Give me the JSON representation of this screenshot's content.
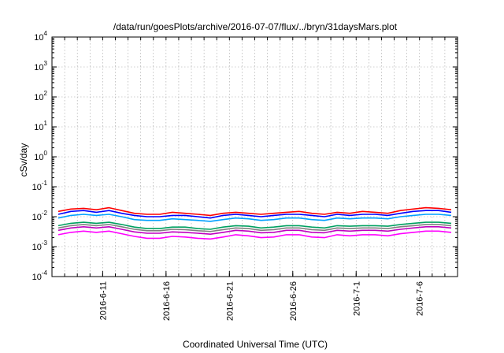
{
  "chart_data": {
    "type": "line",
    "title": "/data/run/goesPlots/archive/2016-07-07/flux/../bryn/31daysMars.plot",
    "xlabel": "Coordinated Universal Time (UTC)",
    "ylabel": "cSv/day",
    "yscale": "log",
    "ylim": [
      0.0001,
      10000
    ],
    "xlim": [
      "2016-06-07T00:00",
      "2016-07-09T00:00"
    ],
    "grid": true,
    "legend": "none",
    "y_ticks": [
      {
        "base": "10",
        "exp": "-4"
      },
      {
        "base": "10",
        "exp": "-3"
      },
      {
        "base": "10",
        "exp": "-2"
      },
      {
        "base": "10",
        "exp": "-1"
      },
      {
        "base": "10",
        "exp": "0"
      },
      {
        "base": "10",
        "exp": "1"
      },
      {
        "base": "10",
        "exp": "2"
      },
      {
        "base": "10",
        "exp": "3"
      },
      {
        "base": "10",
        "exp": "4"
      }
    ],
    "x_ticks": [
      "2016-6-11",
      "2016-6-16",
      "2016-6-21",
      "2016-6-26",
      "2016-7-1",
      "2016-7-6"
    ],
    "x": [
      "2016-06-07",
      "2016-06-08",
      "2016-06-09",
      "2016-06-10",
      "2016-06-11",
      "2016-06-12",
      "2016-06-13",
      "2016-06-14",
      "2016-06-15",
      "2016-06-16",
      "2016-06-17",
      "2016-06-18",
      "2016-06-19",
      "2016-06-20",
      "2016-06-21",
      "2016-06-22",
      "2016-06-23",
      "2016-06-24",
      "2016-06-25",
      "2016-06-26",
      "2016-06-27",
      "2016-06-28",
      "2016-06-29",
      "2016-06-30",
      "2016-07-01",
      "2016-07-02",
      "2016-07-03",
      "2016-07-04",
      "2016-07-05",
      "2016-07-06",
      "2016-07-07",
      "2016-07-08"
    ],
    "series": [
      {
        "color": "#ff0000",
        "values": [
          0.015,
          0.018,
          0.019,
          0.017,
          0.02,
          0.016,
          0.013,
          0.012,
          0.012,
          0.014,
          0.013,
          0.012,
          0.011,
          0.013,
          0.014,
          0.013,
          0.012,
          0.013,
          0.014,
          0.015,
          0.013,
          0.012,
          0.014,
          0.013,
          0.015,
          0.014,
          0.013,
          0.016,
          0.018,
          0.02,
          0.019,
          0.017
        ]
      },
      {
        "color": "#0000ff",
        "values": [
          0.012,
          0.015,
          0.016,
          0.014,
          0.016,
          0.013,
          0.011,
          0.01,
          0.01,
          0.011,
          0.011,
          0.01,
          0.009,
          0.011,
          0.012,
          0.011,
          0.01,
          0.011,
          0.012,
          0.012,
          0.011,
          0.01,
          0.012,
          0.011,
          0.012,
          0.012,
          0.011,
          0.013,
          0.015,
          0.016,
          0.016,
          0.014
        ]
      },
      {
        "color": "#00a0ff",
        "values": [
          0.009,
          0.011,
          0.012,
          0.011,
          0.012,
          0.01,
          0.008,
          0.0075,
          0.0075,
          0.0085,
          0.008,
          0.0075,
          0.007,
          0.008,
          0.009,
          0.0085,
          0.0075,
          0.008,
          0.009,
          0.009,
          0.008,
          0.0075,
          0.009,
          0.0085,
          0.009,
          0.009,
          0.0085,
          0.01,
          0.011,
          0.012,
          0.012,
          0.011
        ]
      },
      {
        "color": "#00a060",
        "values": [
          0.005,
          0.006,
          0.0065,
          0.006,
          0.0065,
          0.0055,
          0.0045,
          0.004,
          0.004,
          0.0045,
          0.0045,
          0.004,
          0.0038,
          0.0045,
          0.005,
          0.0048,
          0.0042,
          0.0045,
          0.005,
          0.005,
          0.0045,
          0.0042,
          0.005,
          0.0048,
          0.005,
          0.005,
          0.0048,
          0.0055,
          0.006,
          0.0065,
          0.0065,
          0.006
        ]
      },
      {
        "color": "#808080",
        "values": [
          0.0042,
          0.005,
          0.0055,
          0.005,
          0.0055,
          0.0046,
          0.0038,
          0.0034,
          0.0034,
          0.0038,
          0.0037,
          0.0034,
          0.0032,
          0.0037,
          0.0042,
          0.004,
          0.0035,
          0.0037,
          0.0042,
          0.0042,
          0.0037,
          0.0035,
          0.0042,
          0.004,
          0.0042,
          0.0042,
          0.004,
          0.0046,
          0.005,
          0.0055,
          0.0055,
          0.005
        ]
      },
      {
        "color": "#c000c0",
        "values": [
          0.0035,
          0.0042,
          0.0046,
          0.0042,
          0.0046,
          0.0038,
          0.0031,
          0.0028,
          0.0028,
          0.0031,
          0.003,
          0.0028,
          0.0026,
          0.003,
          0.0035,
          0.0033,
          0.0029,
          0.003,
          0.0035,
          0.0035,
          0.003,
          0.0029,
          0.0035,
          0.0033,
          0.0035,
          0.0035,
          0.0033,
          0.0038,
          0.0042,
          0.0046,
          0.0046,
          0.0042
        ]
      },
      {
        "color": "#ff00ff",
        "values": [
          0.0025,
          0.003,
          0.0033,
          0.003,
          0.0033,
          0.0027,
          0.0022,
          0.0019,
          0.0019,
          0.0022,
          0.0021,
          0.0019,
          0.0018,
          0.0021,
          0.0025,
          0.0023,
          0.002,
          0.0021,
          0.0025,
          0.0025,
          0.0021,
          0.002,
          0.0025,
          0.0023,
          0.0025,
          0.0025,
          0.0023,
          0.0027,
          0.003,
          0.0033,
          0.0033,
          0.003
        ]
      }
    ]
  }
}
